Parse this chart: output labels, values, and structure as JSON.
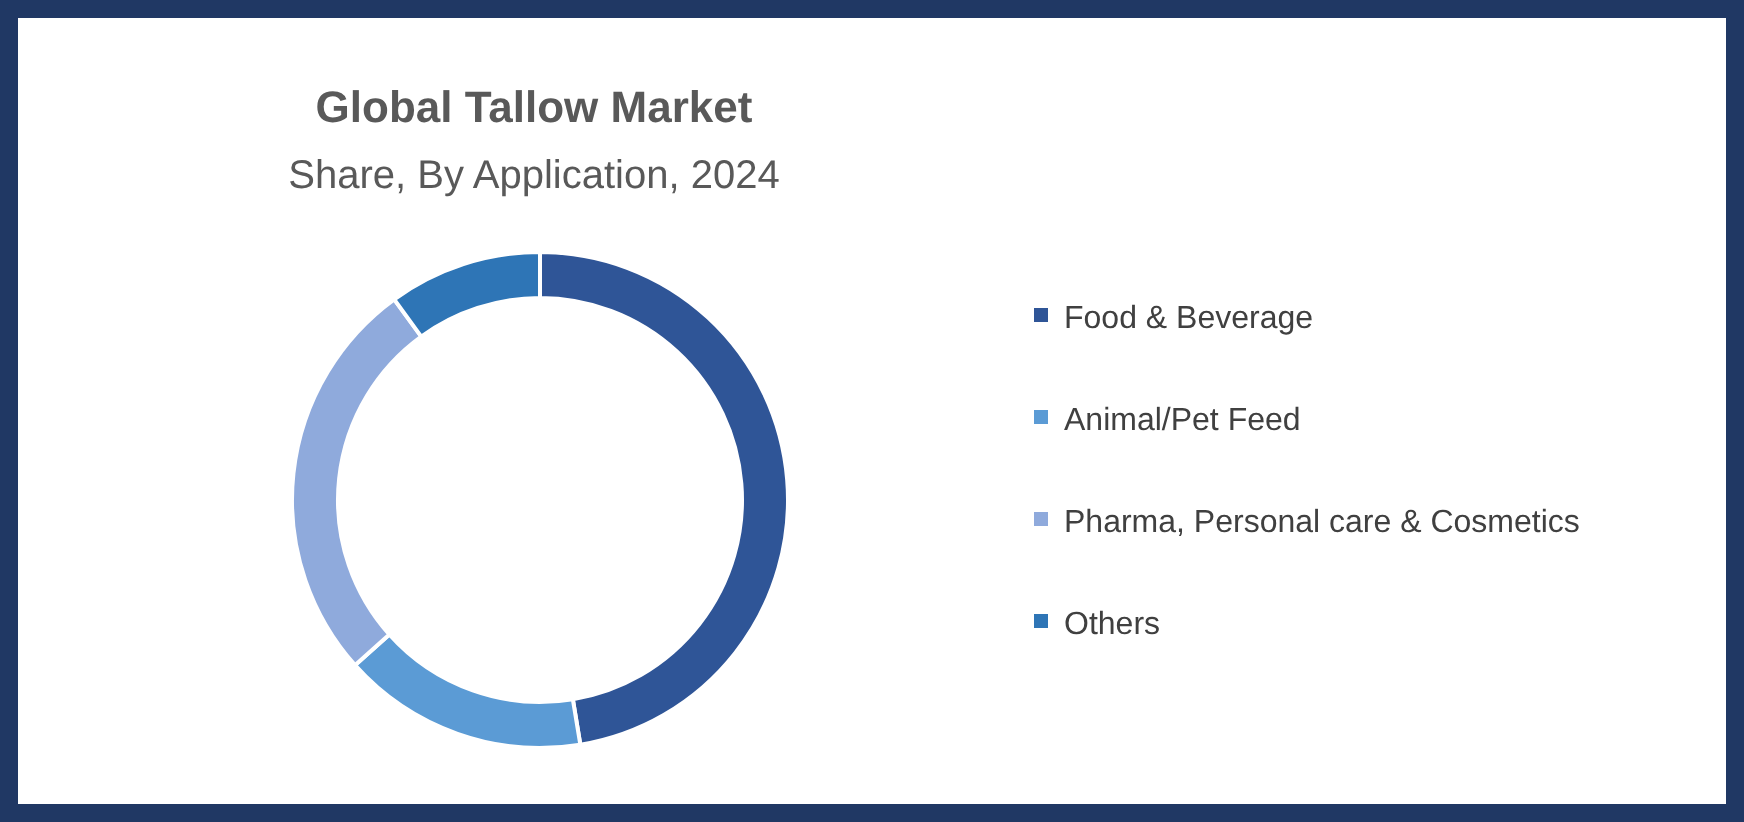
{
  "chart_data": {
    "type": "donut",
    "title": "Global Tallow Market",
    "subtitle": "Share, By Application, 2024",
    "categories": [
      "Food & Beverage",
      "Animal/Pet Feed",
      "Pharma, Personal care & Cosmetics",
      "Others"
    ],
    "values": [
      47.4,
      16,
      26.6,
      10
    ],
    "colors": [
      "#2f5597",
      "#5b9bd5",
      "#8faadc",
      "#2e75b6"
    ],
    "legend": "right"
  }
}
